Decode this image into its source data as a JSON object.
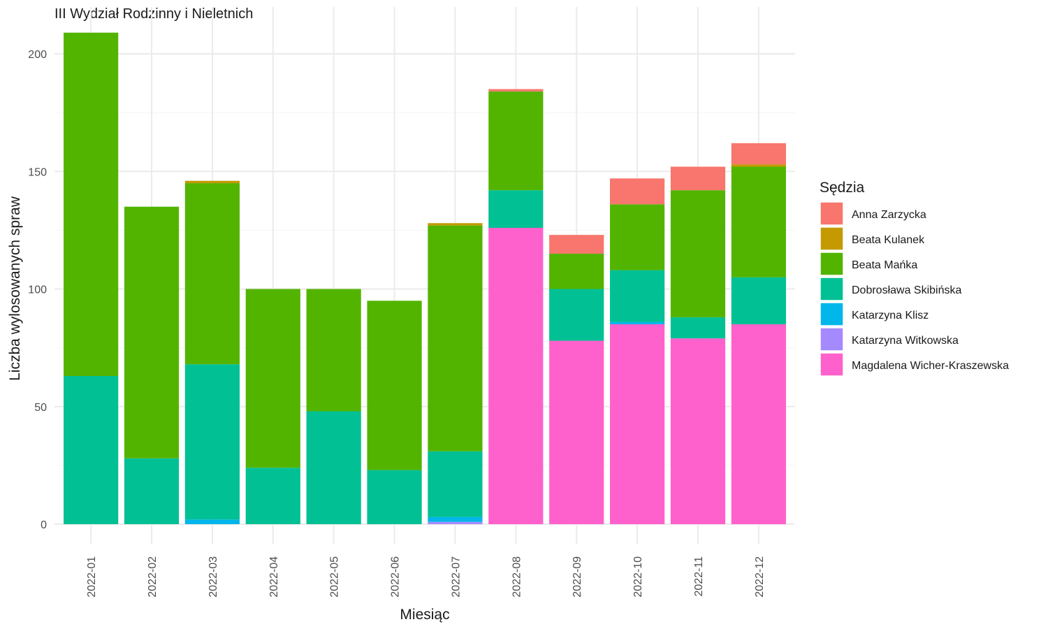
{
  "chart_data": {
    "type": "bar",
    "stacked": true,
    "title": "III Wydział Rodzinny i Nieletnich",
    "xlabel": "Miesiąc",
    "ylabel": "Liczba wylosowanych spraw",
    "ylim": [
      0,
      210
    ],
    "yticks": [
      0,
      50,
      100,
      150,
      200
    ],
    "grid": true,
    "legend": {
      "title": "Sędzia",
      "placement": "right"
    },
    "categories": [
      "2022-01",
      "2022-02",
      "2022-03",
      "2022-04",
      "2022-05",
      "2022-06",
      "2022-07",
      "2022-08",
      "2022-09",
      "2022-10",
      "2022-11",
      "2022-12"
    ],
    "series": [
      {
        "name": "Magdalena Wicher-Kraszewska",
        "color": "#FF61CC",
        "values": [
          0,
          0,
          0,
          0,
          0,
          0,
          0,
          126,
          78,
          85,
          79,
          85
        ]
      },
      {
        "name": "Katarzyna Witkowska",
        "color": "#A58AFF",
        "values": [
          0,
          0,
          0,
          0,
          0,
          0,
          1,
          0,
          0,
          0,
          0,
          0
        ]
      },
      {
        "name": "Katarzyna Klisz",
        "color": "#00B6EB",
        "values": [
          0,
          0,
          2,
          0,
          0,
          0,
          2,
          0,
          0,
          1,
          0,
          0
        ]
      },
      {
        "name": "Dobrosława Skibińska",
        "color": "#00C094",
        "values": [
          63,
          28,
          66,
          24,
          48,
          23,
          28,
          16,
          22,
          22,
          9,
          20
        ]
      },
      {
        "name": "Beata Mańka",
        "color": "#53B400",
        "values": [
          146,
          107,
          77,
          76,
          52,
          72,
          96,
          42,
          15,
          28,
          54,
          47
        ]
      },
      {
        "name": "Beata Kulanek",
        "color": "#C49A00",
        "values": [
          0,
          0,
          1,
          0,
          0,
          0,
          1,
          0,
          0,
          0,
          0,
          1
        ]
      },
      {
        "name": "Anna Zarzycka",
        "color": "#F8766D",
        "values": [
          0,
          0,
          0,
          0,
          0,
          0,
          0,
          1,
          8,
          11,
          10,
          9
        ]
      }
    ],
    "legend_order": [
      "Anna Zarzycka",
      "Beata Kulanek",
      "Beata Mańka",
      "Dobrosława Skibińska",
      "Katarzyna Klisz",
      "Katarzyna Witkowska",
      "Magdalena Wicher-Kraszewska"
    ]
  }
}
